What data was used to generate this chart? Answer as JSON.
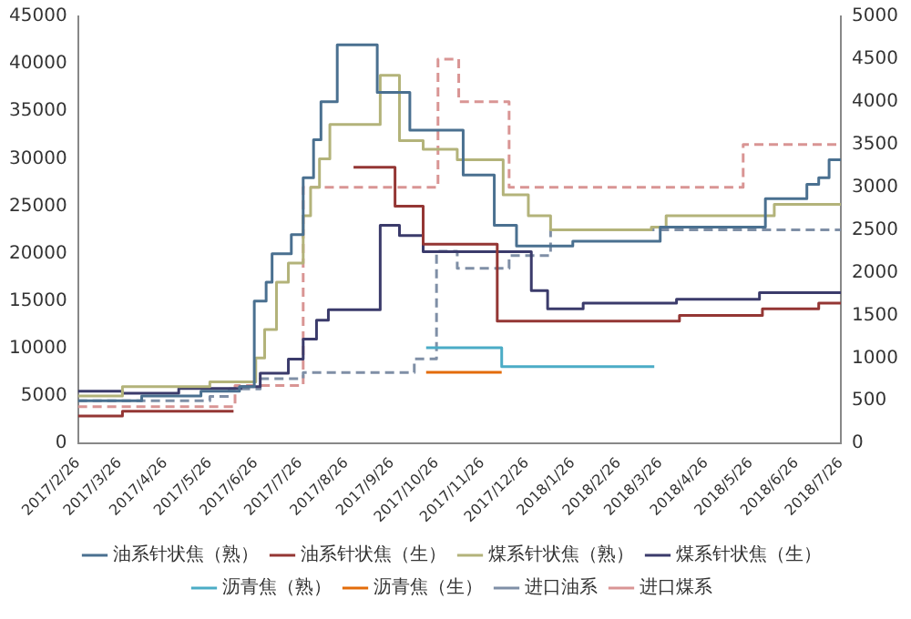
{
  "chart_data": {
    "type": "step",
    "legend": "bottom",
    "line_style": "solid",
    "xlim": [
      "2017-02-26",
      "2018-07-26"
    ],
    "xticks": [
      {
        "value": "2017-02-26",
        "label": "2017/2/26"
      },
      {
        "value": "2017-03-26",
        "label": "2017/3/26"
      },
      {
        "value": "2017-04-26",
        "label": "2017/4/26"
      },
      {
        "value": "2017-05-26",
        "label": "2017/5/26"
      },
      {
        "value": "2017-06-26",
        "label": "2017/6/26"
      },
      {
        "value": "2017-07-26",
        "label": "2017/7/26"
      },
      {
        "value": "2017-08-26",
        "label": "2017/8/26"
      },
      {
        "value": "2017-09-26",
        "label": "2017/9/26"
      },
      {
        "value": "2017-10-26",
        "label": "2017/10/26"
      },
      {
        "value": "2017-11-26",
        "label": "2017/11/26"
      },
      {
        "value": "2017-12-26",
        "label": "2017/12/26"
      },
      {
        "value": "2018-01-26",
        "label": "2018/1/26"
      },
      {
        "value": "2018-02-26",
        "label": "2018/2/26"
      },
      {
        "value": "2018-03-26",
        "label": "2018/3/26"
      },
      {
        "value": "2018-04-26",
        "label": "2018/4/26"
      },
      {
        "value": "2018-05-26",
        "label": "2018/5/26"
      },
      {
        "value": "2018-06-26",
        "label": "2018/6/26"
      },
      {
        "value": "2018-07-26",
        "label": "2018/7/26"
      }
    ],
    "ylim": [
      0,
      45000
    ],
    "yticks": [
      0,
      5000,
      10000,
      15000,
      20000,
      25000,
      30000,
      35000,
      40000,
      45000
    ],
    "y2lim": [
      0,
      5000
    ],
    "y2ticks": [
      0,
      500,
      1000,
      1500,
      2000,
      2500,
      3000,
      3500,
      4000,
      4500,
      5000
    ],
    "series": [
      {
        "name": "油系针状焦（熟）",
        "color": "#4a7090",
        "x": [
          "2017-02-26",
          "2017-04-10",
          "2017-05-20",
          "2017-06-15",
          "2017-06-25",
          "2017-07-03",
          "2017-07-07",
          "2017-07-20",
          "2017-07-28",
          "2017-08-04",
          "2017-08-09",
          "2017-08-20",
          "2017-09-16",
          "2017-10-08",
          "2017-11-13",
          "2017-12-04",
          "2017-12-19",
          "2018-01-26",
          "2018-03-26",
          "2018-06-05",
          "2018-07-03",
          "2018-07-11",
          "2018-07-18",
          "2018-07-26"
        ],
        "values": [
          4500,
          5000,
          5500,
          6000,
          15000,
          17000,
          20000,
          22000,
          28000,
          32000,
          36000,
          42000,
          37000,
          33000,
          28300,
          23000,
          20800,
          21300,
          22800,
          25800,
          27300,
          28000,
          29900,
          29900
        ]
      },
      {
        "name": "油系针状焦（生）",
        "color": "#943634",
        "x": [
          "2017-02-26",
          "2017-03-28",
          "2017-06-11",
          "2017-06-12",
          "2017-08-31",
          "2017-09-28",
          "2017-10-17",
          "2017-12-06",
          "2018-04-08",
          "2018-06-03",
          "2018-07-11",
          "2018-07-26"
        ],
        "values": [
          2900,
          3400,
          3400,
          null,
          29100,
          25000,
          21000,
          12900,
          13500,
          14200,
          14800,
          14800
        ]
      },
      {
        "name": "煤系针状焦（熟）",
        "color": "#b3b37a",
        "x": [
          "2017-02-26",
          "2017-03-28",
          "2017-05-26",
          "2017-06-26",
          "2017-07-02",
          "2017-07-10",
          "2017-07-18",
          "2017-07-28",
          "2017-08-02",
          "2017-08-08",
          "2017-08-15",
          "2017-09-18",
          "2017-10-01",
          "2017-10-17",
          "2017-11-09",
          "2017-12-10",
          "2017-12-27",
          "2018-01-11",
          "2018-03-20",
          "2018-03-30",
          "2018-06-11",
          "2018-07-26"
        ],
        "values": [
          5000,
          6000,
          6500,
          9000,
          12000,
          17000,
          19000,
          24000,
          27000,
          30000,
          33600,
          38800,
          31900,
          31000,
          29900,
          26200,
          24000,
          22500,
          22800,
          24000,
          25200,
          25200
        ]
      },
      {
        "name": "煤系针状焦（生）",
        "color": "#3b3b6b",
        "x": [
          "2017-02-26",
          "2017-03-28",
          "2017-05-05",
          "2017-06-16",
          "2017-06-29",
          "2017-07-18",
          "2017-07-28",
          "2017-08-06",
          "2017-08-14",
          "2017-09-18",
          "2017-10-01",
          "2017-10-17",
          "2017-12-29",
          "2018-01-09",
          "2018-02-02",
          "2018-04-06",
          "2018-06-01",
          "2018-07-26"
        ],
        "values": [
          5500,
          5300,
          5800,
          6000,
          7400,
          8900,
          11000,
          13000,
          14100,
          23000,
          21900,
          20200,
          16100,
          14200,
          14800,
          15200,
          15900,
          15900
        ]
      },
      {
        "name": "沥青焦（熟）",
        "color": "#4bacc6",
        "x": [
          "2017-10-19",
          "2017-12-09",
          "2018-03-22"
        ],
        "values": [
          10100,
          8100,
          8100
        ]
      },
      {
        "name": "沥青焦（生）",
        "color": "#e36c0a",
        "x": [
          "2017-10-19",
          "2017-12-09"
        ],
        "values": [
          7500,
          7500
        ]
      },
      {
        "name": "进口油系",
        "color": "#7f8fa6",
        "axis": "y2",
        "line_style": "dashed",
        "x": [
          "2017-02-26",
          "2017-05-26",
          "2017-06-08",
          "2017-06-29",
          "2017-07-28",
          "2017-10-11",
          "2017-10-26",
          "2017-11-09",
          "2017-12-14",
          "2018-01-11",
          "2018-07-26"
        ],
        "values": [
          500,
          550,
          640,
          760,
          830,
          990,
          2250,
          2050,
          2200,
          2500,
          2500
        ]
      },
      {
        "name": "进口煤系",
        "color": "#d99594",
        "axis": "y2",
        "line_style": "dashed",
        "x": [
          "2017-02-26",
          "2017-06-12",
          "2017-07-28",
          "2017-10-27",
          "2017-11-10",
          "2017-12-14",
          "2018-05-21",
          "2018-07-26"
        ],
        "values": [
          430,
          680,
          3000,
          4500,
          4000,
          3000,
          3500,
          3500
        ]
      }
    ]
  }
}
